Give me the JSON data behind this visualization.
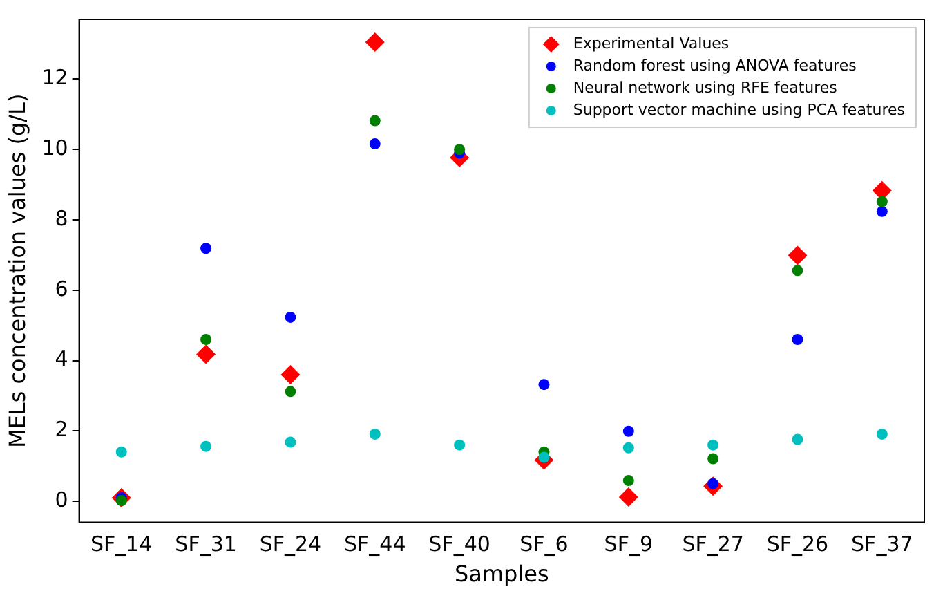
{
  "chart_data": {
    "type": "scatter",
    "xlabel": "Samples",
    "ylabel": "MELs concentration values (g/L)",
    "categories": [
      "SF_14",
      "SF_31",
      "SF_24",
      "SF_44",
      "SF_40",
      "SF_6",
      "SF_9",
      "SF_27",
      "SF_26",
      "SF_37"
    ],
    "ylim": [
      -0.6,
      13.7
    ],
    "yticks": [
      0,
      2,
      4,
      6,
      8,
      10,
      12
    ],
    "grid": false,
    "legend": "top right",
    "series": [
      {
        "name": "Experimental Values",
        "color": "#ff0000",
        "marker": "diamond",
        "values": [
          0.1,
          4.18,
          3.6,
          13.05,
          9.77,
          1.17,
          0.12,
          0.43,
          6.99,
          8.83
        ]
      },
      {
        "name": "Random forest using ANOVA features",
        "color": "#0000ff",
        "marker": "circle",
        "values": [
          0.1,
          7.19,
          5.23,
          10.16,
          9.9,
          3.32,
          1.99,
          0.5,
          4.6,
          8.24
        ]
      },
      {
        "name": "Neural network using RFE features",
        "color": "#008000",
        "marker": "circle",
        "values": [
          0.02,
          4.6,
          3.12,
          10.82,
          10.0,
          1.4,
          0.59,
          1.21,
          6.56,
          8.52
        ]
      },
      {
        "name": "Support vector machine using PCA features",
        "color": "#00bfbf",
        "marker": "circle",
        "values": [
          1.4,
          1.56,
          1.68,
          1.91,
          1.6,
          1.25,
          1.52,
          1.6,
          1.76,
          1.91
        ]
      }
    ]
  }
}
